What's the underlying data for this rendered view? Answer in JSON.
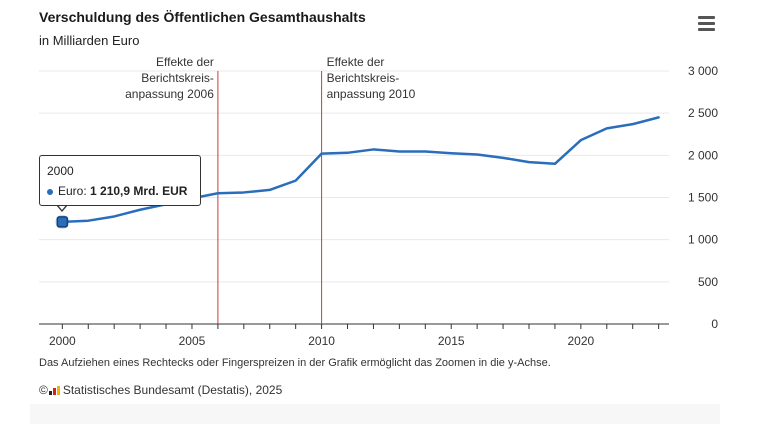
{
  "header": {
    "title": "Verschuldung des Öffentlichen Gesamthaushalts",
    "subtitle": "in Milliarden Euro"
  },
  "menu": {
    "icon": "hamburger-menu-icon"
  },
  "chart_data": {
    "type": "line",
    "title": "Verschuldung des Öffentlichen Gesamthaushalts",
    "subtitle": "in Milliarden Euro",
    "x": [
      2000,
      2001,
      2002,
      2003,
      2004,
      2005,
      2006,
      2007,
      2008,
      2009,
      2010,
      2011,
      2012,
      2013,
      2014,
      2015,
      2016,
      2017,
      2018,
      2019,
      2020,
      2021,
      2022,
      2023
    ],
    "series": [
      {
        "name": "Euro",
        "color": "#2a6ebb",
        "values": [
          1210.9,
          1225,
          1275,
          1355,
          1420,
          1490,
          1550,
          1560,
          1590,
          1700,
          2020,
          2030,
          2070,
          2045,
          2045,
          2025,
          2010,
          1970,
          1920,
          1900,
          2180,
          2320,
          2370,
          2450
        ]
      }
    ],
    "xlim": [
      1999.1,
      2023.4
    ],
    "ylim": [
      0,
      3000
    ],
    "x_ticks": [
      "2000",
      "2005",
      "2010",
      "2015",
      "2020"
    ],
    "y_ticks": [
      "0",
      "500",
      "1 000",
      "1 500",
      "2 000",
      "2 500",
      "3 000"
    ],
    "y_tick_values": [
      0,
      500,
      1000,
      1500,
      2000,
      2500,
      3000
    ],
    "y_axis_side": "right",
    "grid": true,
    "plot_lines": [
      {
        "x": 2006,
        "label": [
          "Effekte der",
          "Berichtskreis-",
          "anpassung 2006"
        ],
        "align": "right",
        "color": "#d33a3a"
      },
      {
        "x": 2010,
        "label": [
          "Effekte der",
          "Berichtskreis-",
          "anpassung 2010"
        ],
        "align": "left",
        "color": "#d33a3a"
      }
    ],
    "highlight_index": 0
  },
  "tooltip": {
    "year": "2000",
    "series_label": "Euro:",
    "value_text": "1 210,9 Mrd. EUR"
  },
  "footer": {
    "note": "Das Aufziehen eines Rechtecks oder Fingerspreizen in der Grafik ermöglicht das Zoomen in die y-Achse.",
    "credit_prefix": "©",
    "credit": "Statistisches Bundesamt (Destatis), 2025"
  }
}
